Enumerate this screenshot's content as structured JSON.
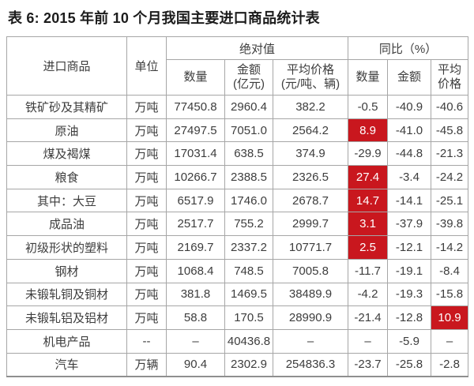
{
  "title": "表 6: 2015 年前 10 个月我国主要进口商品统计表",
  "colors": {
    "highlight_bg": "#c9171e",
    "highlight_text": "#ffffff",
    "text": "#3d3d3d",
    "border": "#a6a6a6"
  },
  "table": {
    "header": {
      "commodity": "进口商品",
      "unit": "单位",
      "absolute_group": "绝对值",
      "yoy_group": "同比（%）",
      "abs_quantity": "数量",
      "abs_amount": "金额\n(亿元)",
      "abs_avg_price": "平均价格\n(元/吨、辆)",
      "yoy_quantity": "数量",
      "yoy_amount": "金额",
      "yoy_avg_price": "平均\n价格"
    },
    "rows": [
      {
        "cells": [
          "铁矿砂及其精矿",
          "万吨",
          "77450.8",
          "2960.4",
          "382.2",
          "-0.5",
          "-40.9",
          "-40.6"
        ],
        "highlight": -1
      },
      {
        "cells": [
          "原油",
          "万吨",
          "27497.5",
          "7051.0",
          "2564.2",
          "8.9",
          "-41.0",
          "-45.8"
        ],
        "highlight": 5
      },
      {
        "cells": [
          "煤及褐煤",
          "万吨",
          "17031.4",
          "638.5",
          "374.9",
          "-29.9",
          "-44.8",
          "-21.3"
        ],
        "highlight": -1
      },
      {
        "cells": [
          "粮食",
          "万吨",
          "10266.7",
          "2388.5",
          "2326.5",
          "27.4",
          "-3.4",
          "-24.2"
        ],
        "highlight": 5
      },
      {
        "cells": [
          "其中：大豆",
          "万吨",
          "6517.9",
          "1746.0",
          "2678.7",
          "14.7",
          "-14.1",
          "-25.1"
        ],
        "highlight": 5
      },
      {
        "cells": [
          "成品油",
          "万吨",
          "2517.7",
          "755.2",
          "2999.7",
          "3.1",
          "-37.9",
          "-39.8"
        ],
        "highlight": 5
      },
      {
        "cells": [
          "初级形状的塑料",
          "万吨",
          "2169.7",
          "2337.2",
          "10771.7",
          "2.5",
          "-12.1",
          "-14.2"
        ],
        "highlight": 5
      },
      {
        "cells": [
          "钢材",
          "万吨",
          "1068.4",
          "748.5",
          "7005.8",
          "-11.7",
          "-19.1",
          "-8.4"
        ],
        "highlight": -1
      },
      {
        "cells": [
          "未锻轧铜及铜材",
          "万吨",
          "381.8",
          "1469.5",
          "38489.9",
          "-4.2",
          "-19.3",
          "-15.8"
        ],
        "highlight": -1
      },
      {
        "cells": [
          "未锻轧铝及铝材",
          "万吨",
          "58.8",
          "170.5",
          "28990.9",
          "-21.4",
          "-12.8",
          "10.9"
        ],
        "highlight": 7
      },
      {
        "cells": [
          "机电产品",
          "--",
          "–",
          "40436.8",
          "–",
          "–",
          "-5.9",
          "–"
        ],
        "highlight": -1
      },
      {
        "cells": [
          "汽车",
          "万辆",
          "90.4",
          "2302.9",
          "254836.3",
          "-23.7",
          "-25.8",
          "-2.8"
        ],
        "highlight": -1
      }
    ]
  }
}
